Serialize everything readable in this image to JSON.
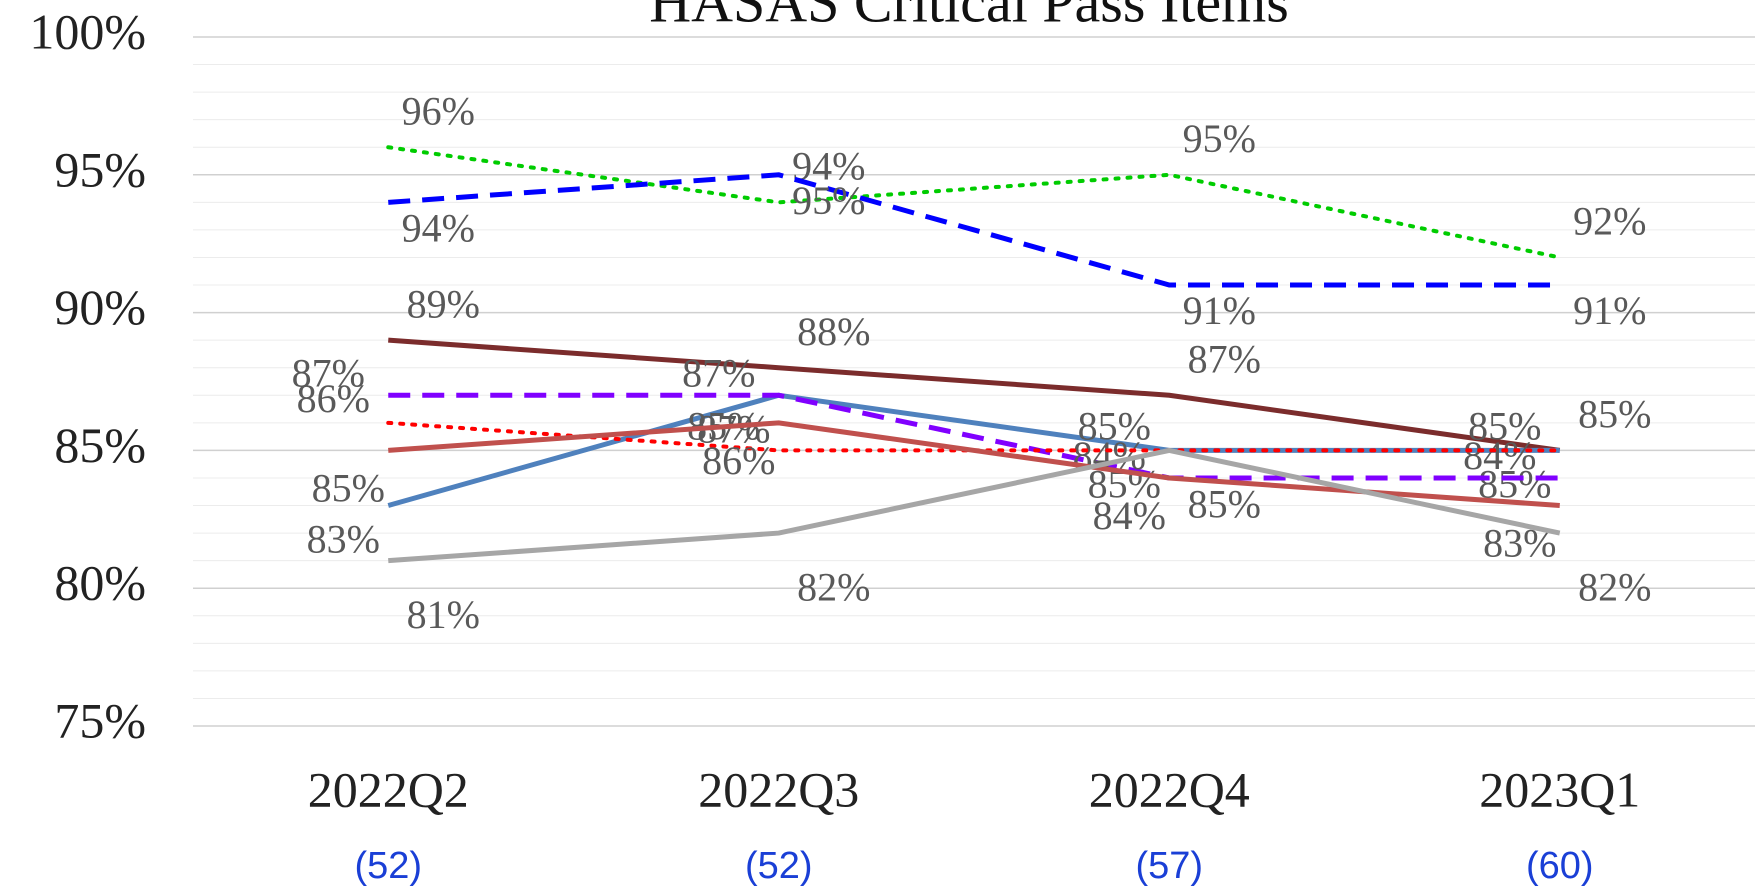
{
  "chart_data": {
    "type": "line",
    "title": "HASAS Critical Pass Items",
    "categories": [
      "2022Q2",
      "2022Q3",
      "2022Q4",
      "2023Q1"
    ],
    "category_counts": [
      "(52)",
      "(52)",
      "(57)",
      "(60)"
    ],
    "ylim": [
      75,
      100
    ],
    "yticks": [
      {
        "value": 75,
        "label": "75%"
      },
      {
        "value": 80,
        "label": "80%"
      },
      {
        "value": 85,
        "label": "85%"
      },
      {
        "value": 90,
        "label": "90%"
      },
      {
        "value": 95,
        "label": "95%"
      },
      {
        "value": 100,
        "label": "100%"
      }
    ],
    "grid": true,
    "minor_grid": true,
    "series": [
      {
        "color": "#00cc00",
        "dash": "dotted",
        "values": [
          96,
          94,
          95,
          92
        ],
        "value_labels": [
          "96%",
          "94%",
          "95%",
          "92%"
        ]
      },
      {
        "color": "#0000ff",
        "dash": "dashed",
        "values": [
          94,
          95,
          91,
          91
        ],
        "value_labels": [
          "94%",
          "95%",
          "91%",
          "91%"
        ]
      },
      {
        "color": "#7b2c2c",
        "dash": "solid",
        "values": [
          89,
          88,
          87,
          85
        ],
        "value_labels": [
          "89%",
          "88%",
          "87%",
          "85%"
        ]
      },
      {
        "color": "#4f81bd",
        "dash": "solid",
        "values": [
          83,
          87,
          85,
          85
        ],
        "value_labels": [
          "83%",
          "87%",
          "85%",
          "85%"
        ]
      },
      {
        "color": "#8000ff",
        "dash": "dashed",
        "values": [
          87,
          87,
          84,
          84
        ],
        "value_labels": [
          "87%",
          "87%",
          "84%",
          "84%"
        ]
      },
      {
        "color": "#ff0000",
        "dash": "dotted",
        "values": [
          86,
          85,
          85,
          85
        ],
        "value_labels": [
          "86%",
          "85%",
          "85%",
          "85%"
        ]
      },
      {
        "color": "#c0504d",
        "dash": "solid",
        "values": [
          85,
          86,
          84,
          83
        ],
        "value_labels": [
          "85%",
          "86%",
          "84%",
          "83%"
        ]
      },
      {
        "color": "#a6a6a6",
        "dash": "solid",
        "values": [
          81,
          82,
          85,
          82
        ],
        "value_labels": [
          "81%",
          "82%",
          "85%",
          "82%"
        ]
      }
    ]
  }
}
